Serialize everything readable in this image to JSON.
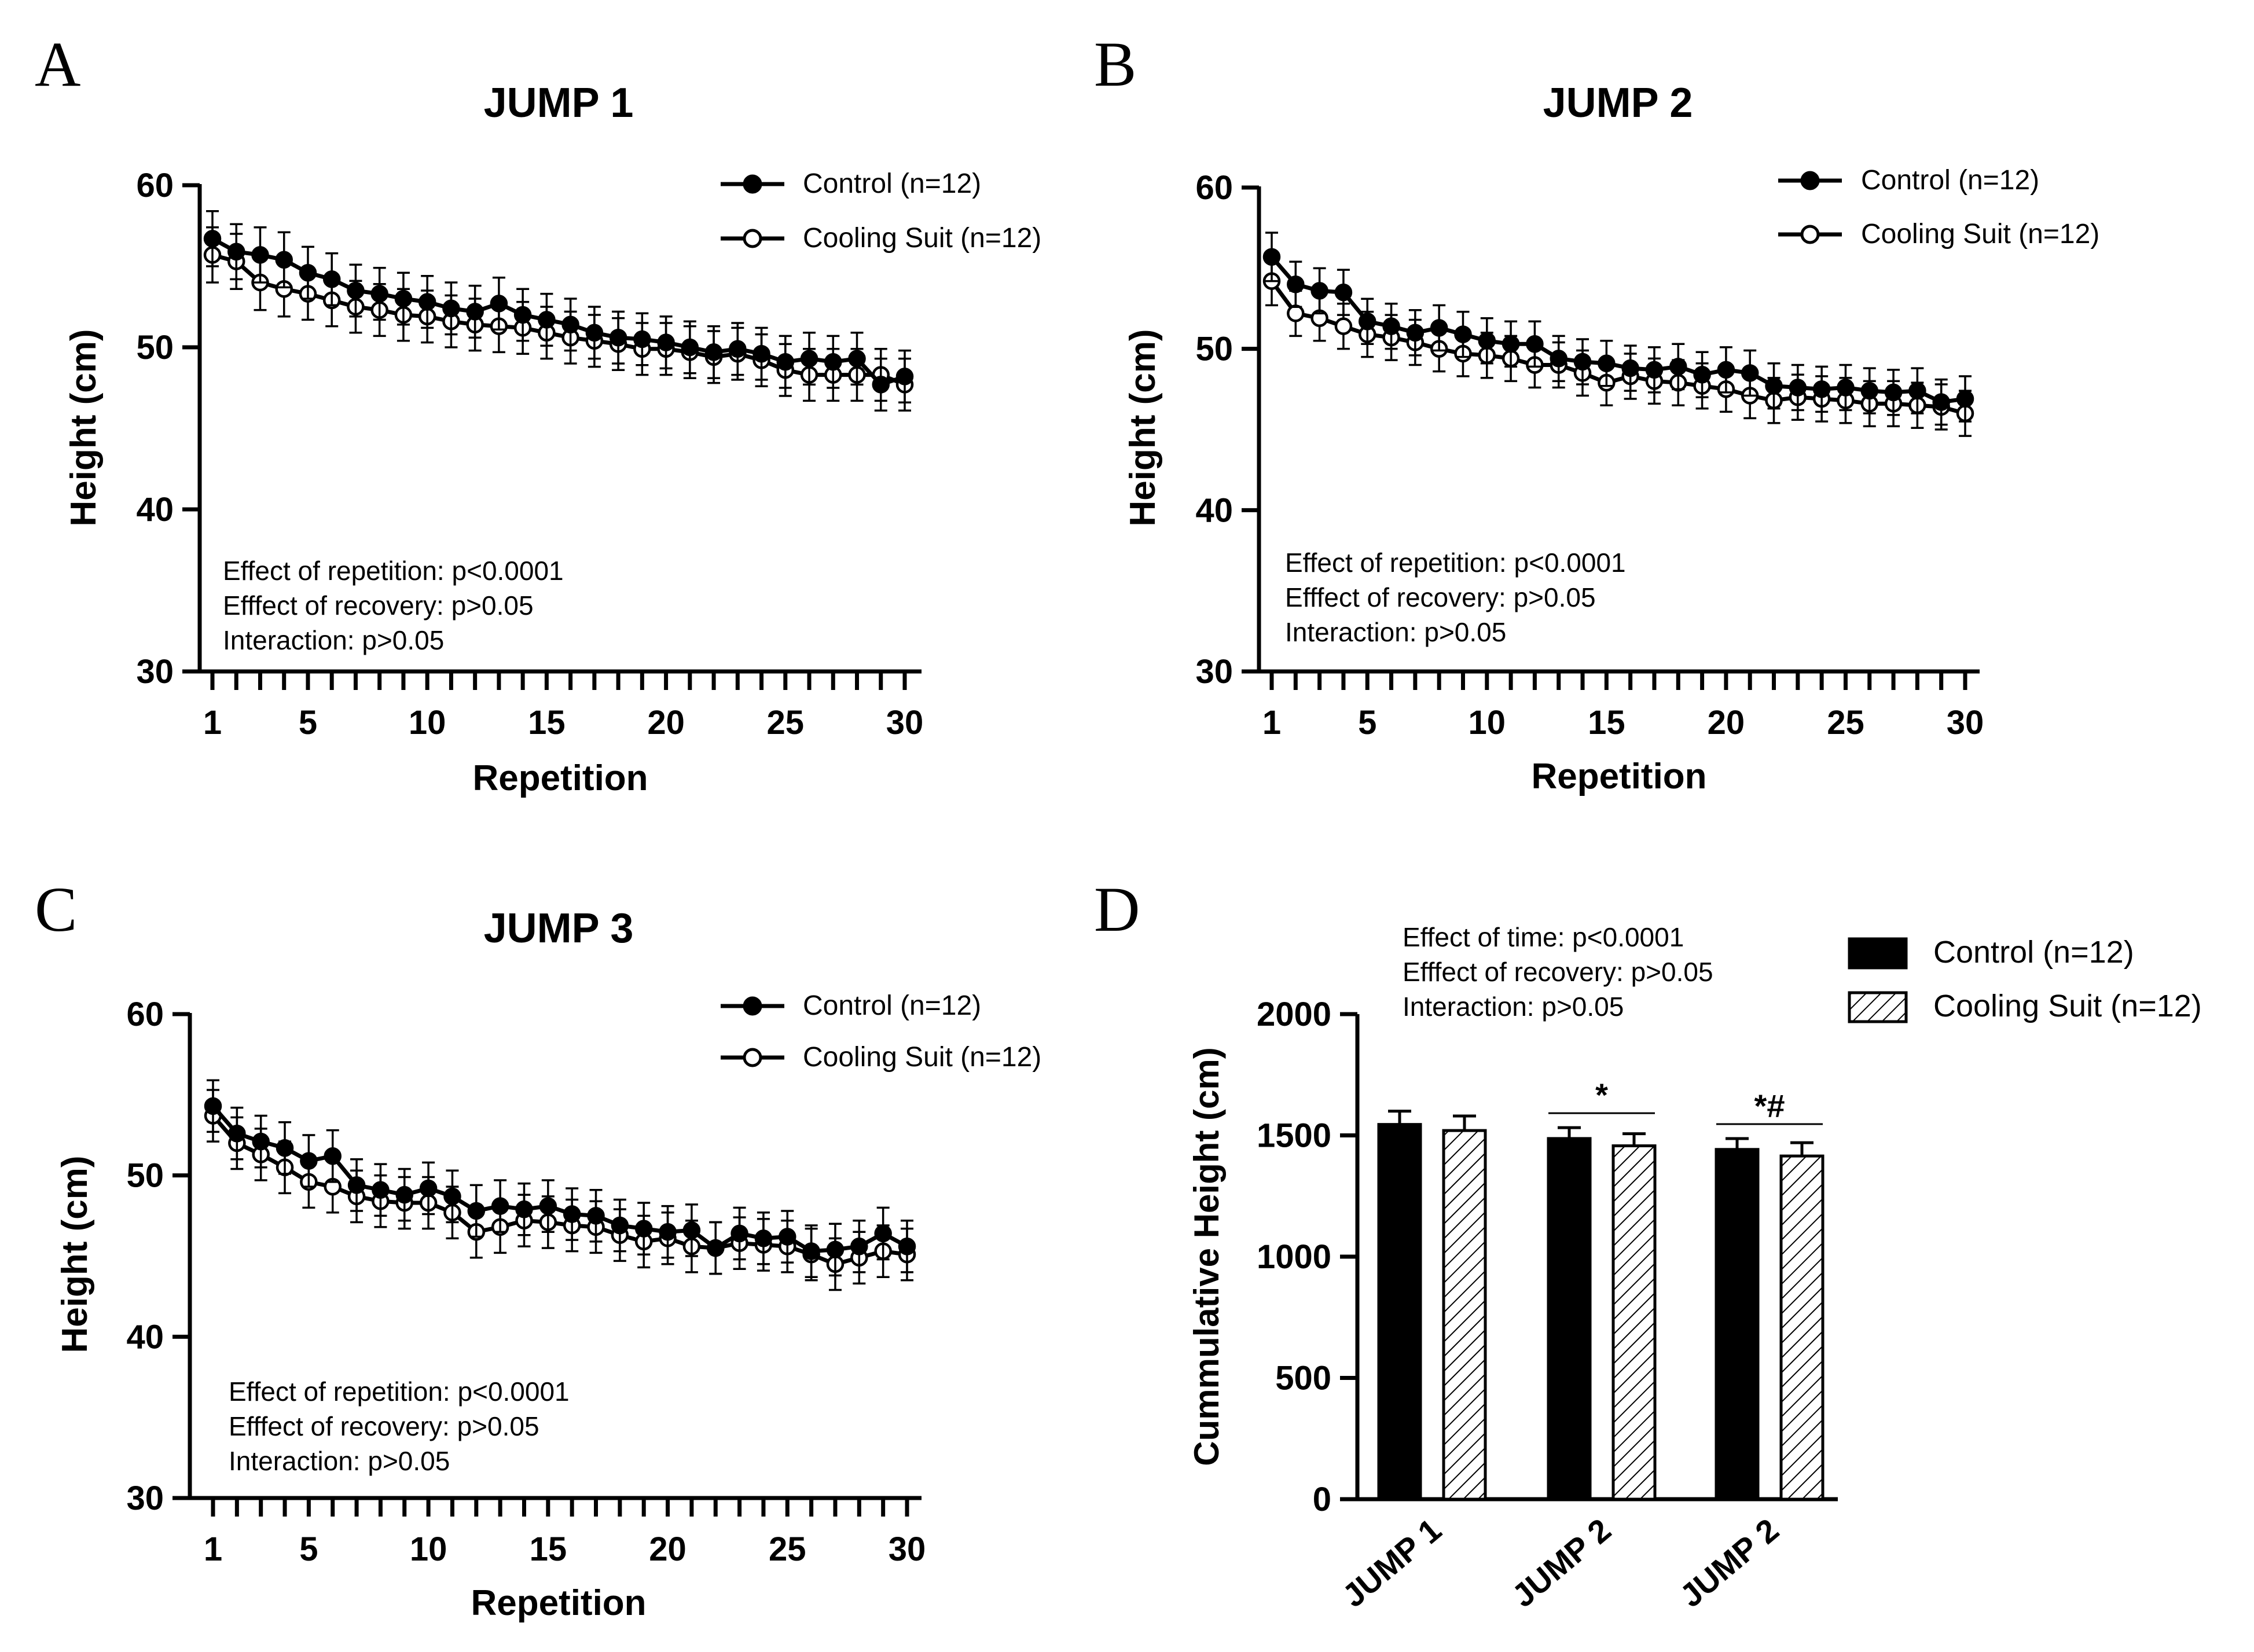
{
  "figure_labels": {
    "panels": [
      "A",
      "B",
      "C",
      "D"
    ]
  },
  "colors": {
    "control": "#000000",
    "cooling": "#ffffff",
    "axis": "#000000"
  },
  "chart_data": [
    {
      "type": "line",
      "panel": "A",
      "title": "JUMP 1",
      "xlabel": "Repetition",
      "ylabel": "Height (cm)",
      "xlim": [
        1,
        30
      ],
      "ylim": [
        30,
        60
      ],
      "x_ticks": [
        1,
        5,
        10,
        15,
        20,
        25,
        30
      ],
      "y_ticks": [
        30,
        40,
        50,
        60
      ],
      "legend_position": "top-right",
      "annotations": [
        "Effect of repetition: p<0.0001",
        "Efffect of recovery: p>0.05",
        "Interaction: p>0.05"
      ],
      "series": [
        {
          "name": "Control (n=12)",
          "marker": "filled",
          "values": [
            56.7,
            55.9,
            55.7,
            55.4,
            54.6,
            54.2,
            53.5,
            53.3,
            53.0,
            52.8,
            52.4,
            52.2,
            52.7,
            52.0,
            51.7,
            51.4,
            50.9,
            50.6,
            50.5,
            50.3,
            50.0,
            49.7,
            49.9,
            49.6,
            49.1,
            49.3,
            49.1,
            49.3,
            47.7,
            48.2
          ],
          "errors": [
            1.7,
            1.7,
            1.7,
            1.7,
            1.6,
            1.6,
            1.6,
            1.6,
            1.6,
            1.6,
            1.6,
            1.6,
            1.6,
            1.6,
            1.6,
            1.6,
            1.6,
            1.6,
            1.6,
            1.6,
            1.6,
            1.6,
            1.6,
            1.6,
            1.6,
            1.6,
            1.6,
            1.6,
            1.6,
            1.6
          ]
        },
        {
          "name": "Cooling Suit (n=12)",
          "marker": "open",
          "values": [
            55.7,
            55.3,
            54.0,
            53.6,
            53.3,
            52.9,
            52.5,
            52.3,
            52.0,
            51.9,
            51.6,
            51.4,
            51.3,
            51.2,
            50.9,
            50.6,
            50.4,
            50.2,
            49.9,
            49.9,
            49.7,
            49.4,
            49.6,
            49.2,
            48.6,
            48.3,
            48.3,
            48.3,
            48.3,
            47.7
          ],
          "errors": [
            1.7,
            1.7,
            1.7,
            1.7,
            1.6,
            1.6,
            1.6,
            1.6,
            1.6,
            1.6,
            1.6,
            1.6,
            1.6,
            1.6,
            1.6,
            1.6,
            1.6,
            1.6,
            1.6,
            1.6,
            1.6,
            1.6,
            1.6,
            1.6,
            1.6,
            1.6,
            1.6,
            1.6,
            1.6,
            1.6
          ]
        }
      ]
    },
    {
      "type": "line",
      "panel": "B",
      "title": "JUMP 2",
      "xlabel": "Repetition",
      "ylabel": "Height (cm)",
      "xlim": [
        1,
        30
      ],
      "ylim": [
        30,
        60
      ],
      "x_ticks": [
        1,
        5,
        10,
        15,
        20,
        25,
        30
      ],
      "y_ticks": [
        30,
        40,
        50,
        60
      ],
      "legend_position": "top-right",
      "annotations": [
        "Effect of repetition: p<0.0001",
        "Efffect of recovery: p>0.05",
        "Interaction: p>0.05"
      ],
      "series": [
        {
          "name": "Control (n=12)",
          "marker": "filled",
          "values": [
            55.7,
            54.0,
            53.6,
            53.5,
            51.7,
            51.4,
            51.0,
            51.3,
            50.9,
            50.5,
            50.3,
            50.3,
            49.4,
            49.2,
            49.1,
            48.8,
            48.7,
            48.9,
            48.4,
            48.7,
            48.5,
            47.7,
            47.6,
            47.5,
            47.6,
            47.4,
            47.3,
            47.4,
            46.7,
            46.9
          ],
          "errors": [
            1.5,
            1.4,
            1.4,
            1.4,
            1.4,
            1.4,
            1.4,
            1.4,
            1.4,
            1.4,
            1.4,
            1.4,
            1.4,
            1.4,
            1.4,
            1.4,
            1.4,
            1.4,
            1.4,
            1.4,
            1.4,
            1.4,
            1.4,
            1.4,
            1.4,
            1.4,
            1.4,
            1.4,
            1.4,
            1.4
          ]
        },
        {
          "name": "Cooling Suit (n=12)",
          "marker": "open",
          "values": [
            54.2,
            52.2,
            51.9,
            51.4,
            50.9,
            50.7,
            50.4,
            50.0,
            49.7,
            49.6,
            49.4,
            49.0,
            49.0,
            48.5,
            47.9,
            48.3,
            48.0,
            47.9,
            47.7,
            47.5,
            47.1,
            46.8,
            47.0,
            46.9,
            46.8,
            46.6,
            46.6,
            46.5,
            46.4,
            46.0
          ],
          "errors": [
            1.5,
            1.4,
            1.4,
            1.4,
            1.4,
            1.4,
            1.4,
            1.4,
            1.4,
            1.4,
            1.4,
            1.4,
            1.4,
            1.4,
            1.4,
            1.4,
            1.4,
            1.4,
            1.4,
            1.4,
            1.4,
            1.4,
            1.4,
            1.4,
            1.4,
            1.4,
            1.4,
            1.4,
            1.4,
            1.4
          ]
        }
      ]
    },
    {
      "type": "line",
      "panel": "C",
      "title": "JUMP 3",
      "xlabel": "Repetition",
      "ylabel": "Height (cm)",
      "xlim": [
        1,
        30
      ],
      "ylim": [
        30,
        60
      ],
      "x_ticks": [
        1,
        5,
        10,
        15,
        20,
        25,
        30
      ],
      "y_ticks": [
        30,
        40,
        50,
        60
      ],
      "legend_position": "top-right",
      "annotations": [
        "Effect of repetition: p<0.0001",
        "Efffect of recovery: p>0.05",
        "Interaction: p>0.05"
      ],
      "series": [
        {
          "name": "Control (n=12)",
          "marker": "filled",
          "values": [
            54.3,
            52.6,
            52.1,
            51.7,
            50.9,
            51.2,
            49.4,
            49.1,
            48.8,
            49.2,
            48.7,
            47.8,
            48.1,
            47.9,
            48.1,
            47.6,
            47.5,
            46.9,
            46.7,
            46.5,
            46.6,
            45.5,
            46.4,
            46.1,
            46.2,
            45.3,
            45.4,
            45.6,
            46.4,
            45.6
          ],
          "errors": [
            1.6,
            1.6,
            1.6,
            1.6,
            1.6,
            1.6,
            1.6,
            1.6,
            1.6,
            1.6,
            1.6,
            1.6,
            1.6,
            1.6,
            1.6,
            1.6,
            1.6,
            1.6,
            1.6,
            1.6,
            1.6,
            1.6,
            1.6,
            1.6,
            1.6,
            1.6,
            1.6,
            1.6,
            1.6,
            1.6
          ]
        },
        {
          "name": "Cooling Suit (n=12)",
          "marker": "open",
          "values": [
            53.7,
            52.0,
            51.3,
            50.5,
            49.6,
            49.3,
            48.7,
            48.4,
            48.3,
            48.3,
            47.7,
            46.5,
            46.8,
            47.2,
            47.1,
            46.9,
            46.8,
            46.3,
            45.9,
            46.1,
            45.6,
            45.5,
            45.8,
            45.7,
            45.6,
            45.1,
            44.5,
            44.9,
            45.3,
            45.1
          ],
          "errors": [
            1.6,
            1.6,
            1.6,
            1.6,
            1.6,
            1.6,
            1.6,
            1.6,
            1.6,
            1.6,
            1.6,
            1.6,
            1.6,
            1.6,
            1.6,
            1.6,
            1.6,
            1.6,
            1.6,
            1.6,
            1.6,
            1.6,
            1.6,
            1.6,
            1.6,
            1.6,
            1.6,
            1.6,
            1.6,
            1.6
          ]
        }
      ]
    },
    {
      "type": "bar",
      "panel": "D",
      "title": "",
      "xlabel": "",
      "ylabel": "Cummulative Height  (cm)",
      "ylim": [
        0,
        2000
      ],
      "y_ticks": [
        0,
        500,
        1000,
        1500,
        2000
      ],
      "categories": [
        "JUMP 1",
        "JUMP 2",
        "JUMP 2"
      ],
      "legend_position": "top-right",
      "annotations": [
        "Effect of time: p<0.0001",
        "Efffect of recovery: p>0.05",
        "Interaction: p>0.05"
      ],
      "significance": [
        {
          "category_index": 0,
          "label": ""
        },
        {
          "category_index": 1,
          "label": "*"
        },
        {
          "category_index": 2,
          "label": "*#"
        }
      ],
      "series": [
        {
          "name": "Control (n=12)",
          "fill": "solid",
          "values": [
            1545,
            1487,
            1442
          ],
          "errors": [
            55,
            45,
            45
          ]
        },
        {
          "name": "Cooling Suit (n=12)",
          "fill": "hatched",
          "values": [
            1520,
            1457,
            1415
          ],
          "errors": [
            60,
            50,
            55
          ]
        }
      ]
    }
  ]
}
